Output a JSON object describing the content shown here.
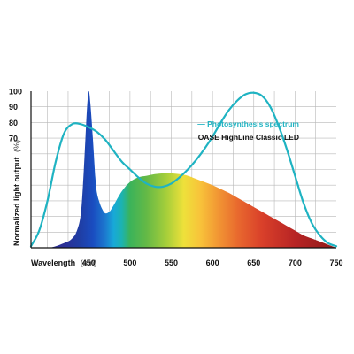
{
  "chart_data": {
    "type": "area",
    "title": "",
    "xlabel": "Wavelength",
    "xlabel_unit": "(nm)",
    "ylabel": "Normalized light output",
    "ylabel_unit": "(%)",
    "xlim": [
      380,
      750
    ],
    "ylim": [
      0,
      100
    ],
    "grid": true,
    "legend_position": "top-right",
    "x_ticks": [
      {
        "value": 450,
        "label": "450"
      },
      {
        "value": 500,
        "label": "500"
      },
      {
        "value": 550,
        "label": "550"
      },
      {
        "value": 600,
        "label": "600"
      },
      {
        "value": 650,
        "label": "650"
      },
      {
        "value": 700,
        "label": "700"
      },
      {
        "value": 750,
        "label": "750"
      }
    ],
    "y_ticks": [
      {
        "value": 70,
        "label": "70"
      },
      {
        "value": 80,
        "label": "80"
      },
      {
        "value": 90,
        "label": "90"
      },
      {
        "value": 100,
        "label": "100"
      }
    ],
    "series": [
      {
        "name": "— Photosynthesis spectrum",
        "style": "line",
        "color": "#1fb3c2",
        "x": [
          380,
          390,
          400,
          410,
          420,
          430,
          440,
          450,
          460,
          470,
          480,
          490,
          500,
          510,
          520,
          530,
          540,
          550,
          560,
          570,
          580,
          590,
          600,
          610,
          620,
          630,
          640,
          650,
          660,
          670,
          680,
          690,
          700,
          710,
          720,
          730,
          740,
          750
        ],
        "values": [
          1,
          11,
          30,
          55,
          73,
          79,
          79,
          77,
          74,
          69,
          62,
          55,
          50,
          45,
          41,
          39,
          39,
          41,
          45,
          50,
          56,
          63,
          71,
          80,
          88,
          94,
          98,
          99,
          97,
          90,
          78,
          63,
          46,
          29,
          16,
          8,
          3,
          1
        ]
      },
      {
        "name": "OASE HighLine Classic LED",
        "style": "spectral-area",
        "x": [
          380,
          400,
          410,
          420,
          425,
          430,
          435,
          440,
          443,
          446,
          448,
          450,
          452,
          455,
          458,
          460,
          463,
          466,
          470,
          475,
          480,
          490,
          500,
          510,
          520,
          530,
          540,
          550,
          560,
          570,
          580,
          590,
          600,
          610,
          620,
          630,
          640,
          650,
          660,
          670,
          680,
          690,
          700,
          710,
          720,
          730,
          740,
          750
        ],
        "values": [
          0,
          0,
          1,
          3,
          4,
          6,
          10,
          20,
          40,
          70,
          90,
          100,
          92,
          70,
          45,
          35,
          29,
          25,
          22,
          23,
          27,
          36,
          42,
          45,
          46,
          47,
          47.5,
          47.5,
          47,
          46,
          44,
          42,
          40,
          37.5,
          35,
          32,
          29,
          26,
          23,
          20,
          17,
          14,
          11,
          8,
          6,
          4,
          2,
          0
        ]
      }
    ],
    "spectrum_colors": [
      {
        "nm": 420,
        "color": "#2b2f95"
      },
      {
        "nm": 440,
        "color": "#1f3ea5"
      },
      {
        "nm": 455,
        "color": "#1a4cc0"
      },
      {
        "nm": 470,
        "color": "#1c79cf"
      },
      {
        "nm": 480,
        "color": "#18a8d8"
      },
      {
        "nm": 490,
        "color": "#1cb3b2"
      },
      {
        "nm": 500,
        "color": "#3bb35a"
      },
      {
        "nm": 520,
        "color": "#64b946"
      },
      {
        "nm": 545,
        "color": "#a9cf3a"
      },
      {
        "nm": 565,
        "color": "#eee13a"
      },
      {
        "nm": 585,
        "color": "#f8c33a"
      },
      {
        "nm": 605,
        "color": "#f29a34"
      },
      {
        "nm": 630,
        "color": "#e96a2e"
      },
      {
        "nm": 660,
        "color": "#d9402a"
      },
      {
        "nm": 700,
        "color": "#b72424"
      },
      {
        "nm": 750,
        "color": "#8e1a1a"
      }
    ]
  }
}
